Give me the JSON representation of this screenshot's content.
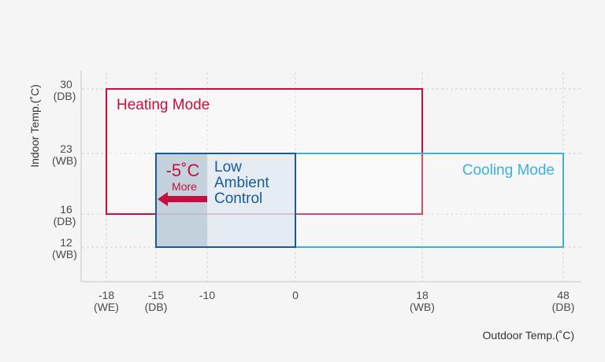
{
  "chart_data": {
    "type": "table",
    "x_axis": {
      "label": "Outdoor Temp.(˚C)",
      "ticks": [
        {
          "value": -18,
          "label": "-18",
          "sub": "(WE)"
        },
        {
          "value": -15,
          "label": "-15",
          "sub": "(DB)"
        },
        {
          "value": -10,
          "label": "-10",
          "sub": ""
        },
        {
          "value": 0,
          "label": "0",
          "sub": ""
        },
        {
          "value": 18,
          "label": "18",
          "sub": "(WB)"
        },
        {
          "value": 48,
          "label": "48",
          "sub": "(DB)"
        }
      ]
    },
    "y_axis": {
      "label": "Indoor Temp.(˚C)",
      "ticks": [
        {
          "value": 30,
          "label": "30",
          "sub": "(DB)"
        },
        {
          "value": 23,
          "label": "23",
          "sub": "(WB)"
        },
        {
          "value": 16,
          "label": "16",
          "sub": "(DB)"
        },
        {
          "value": 12,
          "label": "12",
          "sub": "(WB)"
        }
      ]
    },
    "regions": [
      {
        "name": "Heating Mode",
        "x_range": [
          -18,
          18
        ],
        "y_range": [
          16,
          30
        ],
        "color": "#c4103f"
      },
      {
        "name": "Cooling Mode",
        "x_range": [
          -15,
          48
        ],
        "y_range": [
          12,
          23
        ],
        "color": "#3fb0dc"
      },
      {
        "name": "Low Ambient Control",
        "x_range": [
          -15,
          0
        ],
        "y_range": [
          12,
          23
        ],
        "color": "#1a5a96"
      }
    ],
    "annotation": {
      "value_text": "-5˚C",
      "sub_text": "More",
      "arrow_from": -10,
      "arrow_to": -15,
      "color": "#c4103f"
    },
    "grid": true
  },
  "labels": {
    "heating": "Heating Mode",
    "cooling": "Cooling Mode",
    "low_ambient": [
      "Low",
      "Ambient",
      "Control"
    ]
  }
}
